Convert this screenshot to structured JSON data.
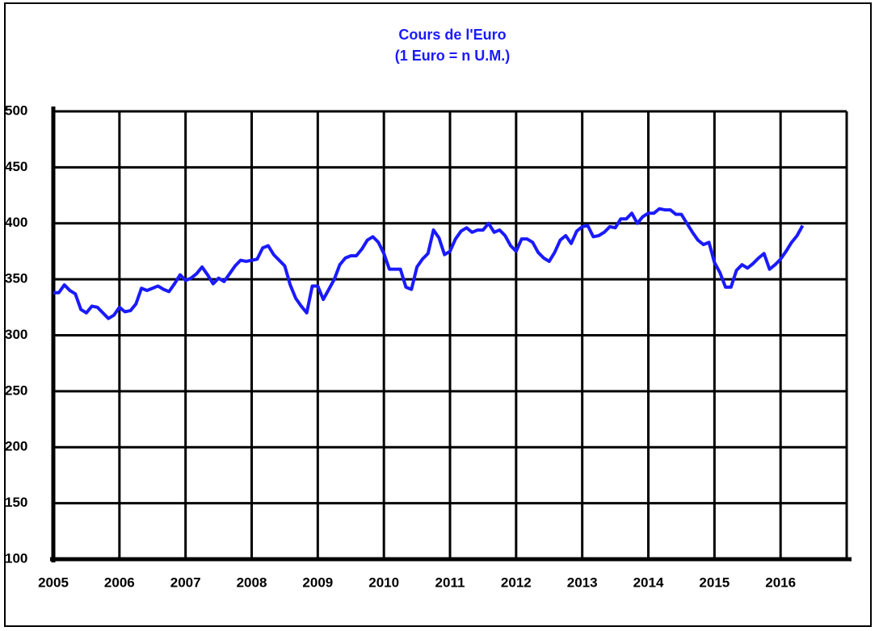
{
  "chart_data": {
    "type": "line",
    "title": "Cours de l'Euro",
    "subtitle": "(1 Euro = n U.M.)",
    "x": [
      2005,
      2005.083,
      2005.167,
      2005.25,
      2005.333,
      2005.417,
      2005.5,
      2005.583,
      2005.667,
      2005.75,
      2005.833,
      2005.917,
      2006,
      2006.083,
      2006.167,
      2006.25,
      2006.333,
      2006.417,
      2006.5,
      2006.583,
      2006.667,
      2006.75,
      2006.833,
      2006.917,
      2007,
      2007.083,
      2007.167,
      2007.25,
      2007.333,
      2007.417,
      2007.5,
      2007.583,
      2007.667,
      2007.75,
      2007.833,
      2007.917,
      2008,
      2008.083,
      2008.167,
      2008.25,
      2008.333,
      2008.417,
      2008.5,
      2008.583,
      2008.667,
      2008.75,
      2008.833,
      2008.917,
      2009,
      2009.083,
      2009.167,
      2009.25,
      2009.333,
      2009.417,
      2009.5,
      2009.583,
      2009.667,
      2009.75,
      2009.833,
      2009.917,
      2010,
      2010.083,
      2010.167,
      2010.25,
      2010.333,
      2010.417,
      2010.5,
      2010.583,
      2010.667,
      2010.75,
      2010.833,
      2010.917,
      2011,
      2011.083,
      2011.167,
      2011.25,
      2011.333,
      2011.417,
      2011.5,
      2011.583,
      2011.667,
      2011.75,
      2011.833,
      2011.917,
      2012,
      2012.083,
      2012.167,
      2012.25,
      2012.333,
      2012.417,
      2012.5,
      2012.583,
      2012.667,
      2012.75,
      2012.833,
      2012.917,
      2013,
      2013.083,
      2013.167,
      2013.25,
      2013.333,
      2013.417,
      2013.5,
      2013.583,
      2013.667,
      2013.75,
      2013.833,
      2013.917,
      2014,
      2014.083,
      2014.167,
      2014.25,
      2014.333,
      2014.417,
      2014.5,
      2014.583,
      2014.667,
      2014.75,
      2014.833,
      2014.917,
      2015,
      2015.083,
      2015.167,
      2015.25,
      2015.333,
      2015.417,
      2015.5,
      2015.583,
      2015.667,
      2015.75,
      2015.833,
      2015.917,
      2016,
      2016.083,
      2016.167,
      2016.25,
      2016.333
    ],
    "series": [
      {
        "color": "#1a1aff",
        "values": [
          338,
          338,
          345,
          340,
          337,
          323,
          320,
          326,
          325,
          320,
          315,
          318,
          325,
          321,
          322,
          328,
          342,
          340,
          342,
          344,
          341,
          339,
          346,
          354,
          349,
          351,
          355,
          361,
          354,
          346,
          351,
          348,
          355,
          362,
          367,
          366,
          367,
          368,
          378,
          380,
          372,
          367,
          362,
          345,
          333,
          326,
          320,
          344,
          344,
          332,
          341,
          350,
          363,
          369,
          371,
          371,
          377,
          385,
          388,
          383,
          373,
          359,
          359,
          359,
          343,
          341,
          361,
          368,
          373,
          394,
          387,
          372,
          375,
          386,
          393,
          396,
          392,
          394,
          394,
          400,
          392,
          394,
          389,
          380,
          375,
          386,
          386,
          383,
          374,
          369,
          366,
          374,
          385,
          389,
          382,
          393,
          397,
          398,
          388,
          389,
          392,
          397,
          396,
          404,
          404,
          409,
          400,
          406,
          409,
          409,
          413,
          412,
          412,
          408,
          408,
          400,
          392,
          385,
          381,
          383,
          365,
          356,
          343,
          343,
          358,
          363,
          360,
          364,
          369,
          373,
          359,
          363,
          368,
          375,
          383,
          389,
          398
        ]
      }
    ],
    "xlim": [
      2005,
      2017
    ],
    "xticks": [
      2005,
      2006,
      2007,
      2008,
      2009,
      2010,
      2011,
      2012,
      2013,
      2014,
      2015,
      2016
    ],
    "ylim": [
      100,
      500
    ],
    "yticks": [
      100,
      150,
      200,
      250,
      300,
      350,
      400,
      450,
      500
    ],
    "grid": true
  }
}
